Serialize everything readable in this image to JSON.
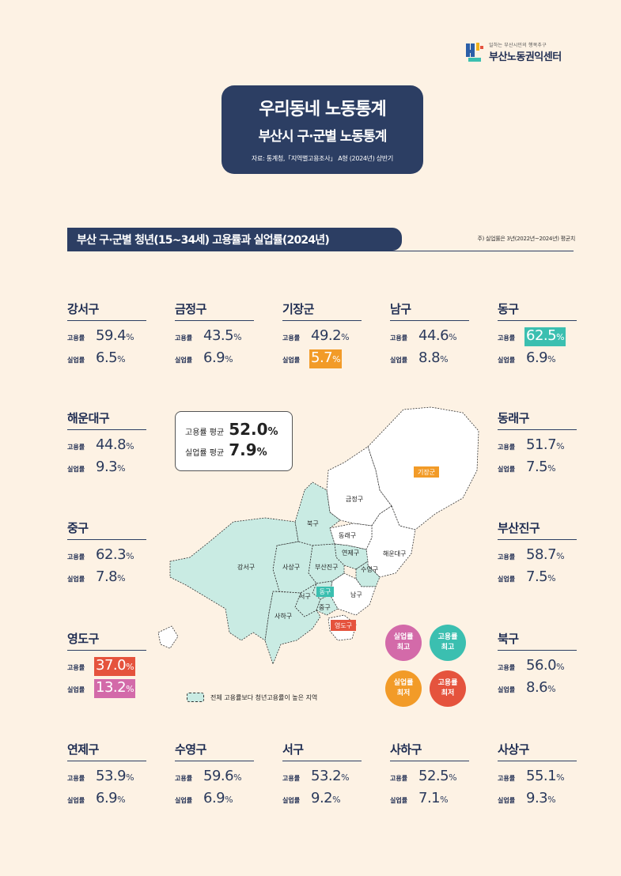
{
  "header": {
    "logo_tagline": "일하는 부산시민의 행복추구",
    "logo_name": "부산노동권익센터",
    "title_line1": "우리동네 노동통계",
    "title_line2": "부산시 구·군별 노동통계",
    "source": "자료: 통계청,「지역별고용조사」 A형 (2024년) 상반기"
  },
  "section": {
    "title": "부산 구·군별 청년(15~34세) 고용률과 실업률(2024년)",
    "note": "주) 실업률은 3년(2022년~2024년) 평균치"
  },
  "labels": {
    "employment": "고용률",
    "unemployment": "실업률",
    "pct": "%"
  },
  "average": {
    "employment_label": "고용률 평균",
    "employment_value": "52.0",
    "unemployment_label": "실업률 평균",
    "unemployment_value": "7.9"
  },
  "districts": {
    "gangseo": {
      "name": "강서구",
      "emp": "59.4",
      "unemp": "6.5"
    },
    "geumjeong": {
      "name": "금정구",
      "emp": "43.5",
      "unemp": "6.9"
    },
    "gijang": {
      "name": "기장군",
      "emp": "49.2",
      "unemp": "5.7"
    },
    "nam": {
      "name": "남구",
      "emp": "44.6",
      "unemp": "8.8"
    },
    "dong": {
      "name": "동구",
      "emp": "62.5",
      "unemp": "6.9"
    },
    "haeundae": {
      "name": "해운대구",
      "emp": "44.8",
      "unemp": "9.3"
    },
    "dongnae": {
      "name": "동래구",
      "emp": "51.7",
      "unemp": "7.5"
    },
    "jung": {
      "name": "중구",
      "emp": "62.3",
      "unemp": "7.8"
    },
    "busanjin": {
      "name": "부산진구",
      "emp": "58.7",
      "unemp": "7.5"
    },
    "yeongdo": {
      "name": "영도구",
      "emp": "37.0",
      "unemp": "13.2"
    },
    "buk": {
      "name": "북구",
      "emp": "56.0",
      "unemp": "8.6"
    },
    "yeonje": {
      "name": "연제구",
      "emp": "53.9",
      "unemp": "6.9"
    },
    "suyeong": {
      "name": "수영구",
      "emp": "59.6",
      "unemp": "6.9"
    },
    "seo": {
      "name": "서구",
      "emp": "53.2",
      "unemp": "9.2"
    },
    "saha": {
      "name": "사하구",
      "emp": "52.5",
      "unemp": "7.1"
    },
    "sasang": {
      "name": "사상구",
      "emp": "55.1",
      "unemp": "9.3"
    }
  },
  "map_labels": {
    "gangseo": "강서구",
    "buk": "북구",
    "sasang": "사상구",
    "busanjin": "부산진구",
    "geumjeong": "금정구",
    "gijang": "기장군",
    "dongnae": "동래구",
    "yeonje": "연제구",
    "suyeong": "수영구",
    "haeundae": "해운대구",
    "seo": "서구",
    "dong": "동구",
    "jung": "중구",
    "nam": "남구",
    "saha": "사하구",
    "yeongdo": "영도구"
  },
  "legend_circles": {
    "unemp_high": [
      "실업률",
      "최고"
    ],
    "emp_high": [
      "고용률",
      "최고"
    ],
    "unemp_low": [
      "실업률",
      "최저"
    ],
    "emp_low": [
      "고용률",
      "최저"
    ]
  },
  "legend_text": "전체 고용률보다 청년고용률이 높은 지역",
  "colors": {
    "navy": "#2c3e63",
    "background": "#fdf2e4",
    "teal": "#3bbfb0",
    "orange": "#f29b28",
    "red": "#e5533d",
    "pink": "#d36aa9",
    "map_highlight": "#c9ebe3"
  }
}
